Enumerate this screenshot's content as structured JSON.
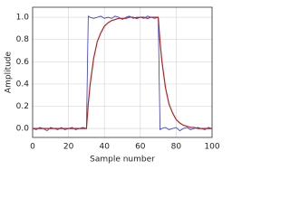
{
  "chart_data": {
    "type": "line",
    "x_label": "Sample number",
    "y_label": "Amplitude",
    "x": [
      0,
      2,
      4,
      6,
      8,
      10,
      12,
      14,
      16,
      18,
      20,
      22,
      24,
      26,
      28,
      30,
      31,
      32,
      34,
      36,
      38,
      40,
      42,
      44,
      46,
      48,
      50,
      52,
      54,
      56,
      58,
      60,
      62,
      64,
      66,
      68,
      70,
      71,
      72,
      74,
      76,
      78,
      80,
      82,
      84,
      86,
      88,
      90,
      92,
      94,
      96,
      98,
      100
    ],
    "series": [
      {
        "color": "#3333dd",
        "width": 0.8,
        "values": [
          0.0,
          -0.01,
          0.01,
          0.0,
          -0.02,
          0.01,
          0.0,
          -0.01,
          0.01,
          -0.01,
          0.0,
          0.01,
          -0.01,
          0.0,
          0.01,
          0.0,
          1.01,
          1.0,
          0.99,
          1.0,
          1.01,
          0.99,
          1.0,
          0.99,
          1.01,
          1.0,
          0.98,
          1.0,
          1.01,
          0.99,
          1.0,
          1.0,
          0.99,
          1.01,
          1.0,
          0.99,
          1.0,
          -0.01,
          0.0,
          0.01,
          -0.01,
          0.0,
          0.01,
          -0.02,
          0.0,
          0.01,
          -0.01,
          0.0,
          0.01,
          0.0,
          -0.01,
          0.01,
          0.0
        ]
      },
      {
        "color": "#b22222",
        "width": 1.2,
        "values": [
          0,
          0,
          0,
          0,
          0,
          0,
          0,
          0,
          0,
          0,
          0,
          0,
          0,
          0,
          0,
          0.0,
          0.22,
          0.39,
          0.63,
          0.78,
          0.86,
          0.92,
          0.95,
          0.97,
          0.98,
          0.99,
          0.99,
          0.99,
          1.0,
          1.0,
          0.99,
          1.0,
          1.0,
          0.99,
          1.0,
          1.0,
          1.0,
          0.78,
          0.61,
          0.37,
          0.22,
          0.14,
          0.08,
          0.05,
          0.03,
          0.02,
          0.01,
          0.01,
          0.0,
          0.0,
          0.0,
          0.0,
          0.0
        ]
      }
    ],
    "xlim": [
      0,
      100
    ],
    "xticks": [
      0,
      20,
      40,
      60,
      80,
      100
    ],
    "ylim": [
      -0.08,
      1.09
    ],
    "yticks": [
      {
        "value": 0,
        "label": "0.0"
      },
      0.2,
      0.4,
      0.6,
      0.8,
      {
        "value": 1,
        "label": "1.0"
      }
    ],
    "grid": true
  }
}
